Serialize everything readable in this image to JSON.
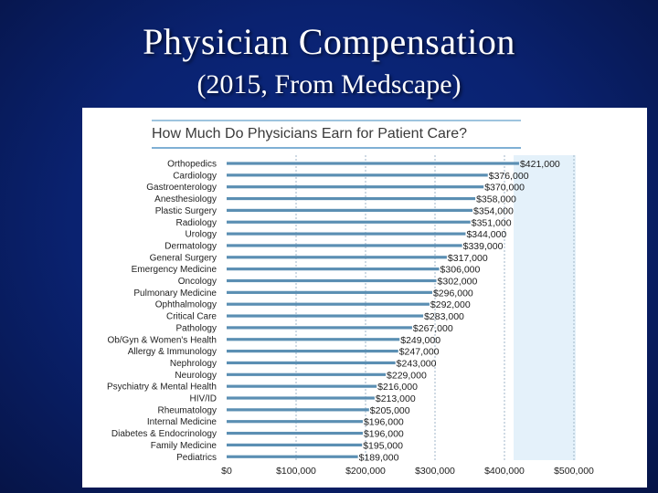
{
  "slide": {
    "title": "Physician Compensation",
    "subtitle": "(2015, From Medscape)"
  },
  "colors": {
    "bar": "#5b8fb3",
    "shade": "#e4f1fa",
    "grid": "#9fb6c8",
    "rule": "#7fb0d4"
  },
  "chart_data": {
    "type": "bar",
    "orientation": "horizontal",
    "title": "How Much Do Physicians Earn for Patient Care?",
    "xlabel": "",
    "ylabel": "",
    "xlim": [
      0,
      500000
    ],
    "grid": true,
    "x_ticks": [
      0,
      100000,
      200000,
      300000,
      400000,
      500000
    ],
    "x_tick_labels": [
      "$0",
      "$100,000",
      "$200,000",
      "$300,000",
      "$400,000",
      "$500,000"
    ],
    "categories": [
      "Orthopedics",
      "Cardiology",
      "Gastroenterology",
      "Anesthesiology",
      "Plastic Surgery",
      "Radiology",
      "Urology",
      "Dermatology",
      "General Surgery",
      "Emergency Medicine",
      "Oncology",
      "Pulmonary Medicine",
      "Ophthalmology",
      "Critical Care",
      "Pathology",
      "Ob/Gyn & Women's Health",
      "Allergy & Immunology",
      "Nephrology",
      "Neurology",
      "Psychiatry & Mental Health",
      "HIV/ID",
      "Rheumatology",
      "Internal Medicine",
      "Diabetes & Endocrinology",
      "Family Medicine",
      "Pediatrics"
    ],
    "values": [
      421000,
      376000,
      370000,
      358000,
      354000,
      351000,
      344000,
      339000,
      317000,
      306000,
      302000,
      296000,
      292000,
      283000,
      267000,
      249000,
      247000,
      243000,
      229000,
      216000,
      213000,
      205000,
      196000,
      196000,
      195000,
      189000
    ],
    "value_labels": [
      "$421,000",
      "$376,000",
      "$370,000",
      "$358,000",
      "$354,000",
      "$351,000",
      "$344,000",
      "$339,000",
      "$317,000",
      "$306,000",
      "$302,000",
      "$296,000",
      "$292,000",
      "$283,000",
      "$267,000",
      "$249,000",
      "$247,000",
      "$243,000",
      "$229,000",
      "$216,000",
      "$213,000",
      "$205,000",
      "$196,000",
      "$196,000",
      "$195,000",
      "$189,000"
    ]
  }
}
